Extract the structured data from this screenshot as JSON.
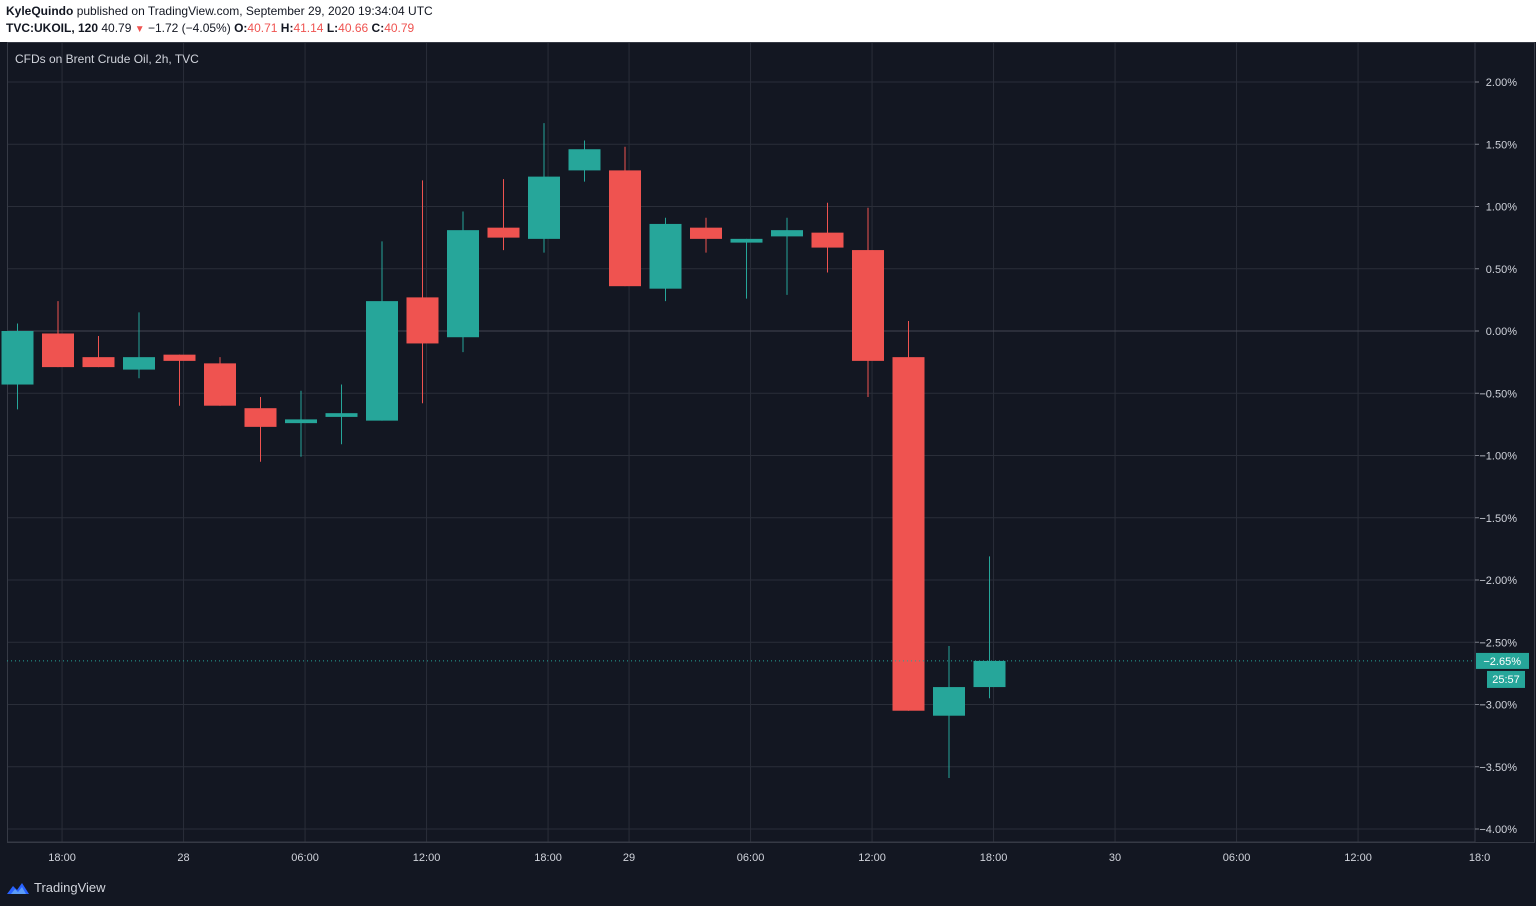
{
  "header": {
    "author": "KyleQuindo",
    "published_text": "published on TradingView.com, September 29, 2020 19:34:04 UTC",
    "symbol": "TVC:UKOIL, 120",
    "last": "40.79",
    "change": "−1.72 (−4.05%)",
    "o_label": "O:",
    "o": "40.71",
    "h_label": "H:",
    "h": "41.14",
    "l_label": "L:",
    "l": "40.66",
    "c_label": "C:",
    "c": "40.79"
  },
  "footer": {
    "brand": "TradingView"
  },
  "chart_data": {
    "type": "candlestick",
    "title": "CFDs on Brent Crude Oil, 2h, TVC",
    "y_unit": "%",
    "ylim": [
      -4.0,
      2.0
    ],
    "y_ticks": [
      {
        "v": 2.0,
        "label": "2.00%"
      },
      {
        "v": 1.5,
        "label": "1.50%"
      },
      {
        "v": 1.0,
        "label": "1.00%"
      },
      {
        "v": 0.5,
        "label": "0.50%"
      },
      {
        "v": 0.0,
        "label": "0.00%"
      },
      {
        "v": -0.5,
        "label": "−0.50%"
      },
      {
        "v": -1.0,
        "label": "−1.00%"
      },
      {
        "v": -1.5,
        "label": "−1.50%"
      },
      {
        "v": -2.0,
        "label": "−2.00%"
      },
      {
        "v": -2.5,
        "label": "−2.50%"
      },
      {
        "v": -3.0,
        "label": "−3.00%"
      },
      {
        "v": -3.5,
        "label": "−3.50%"
      },
      {
        "v": -4.0,
        "label": "−4.00%"
      }
    ],
    "x_ticks": [
      {
        "i": 1.1,
        "label": "18:00"
      },
      {
        "i": 4.1,
        "label": "28"
      },
      {
        "i": 7.1,
        "label": "06:00"
      },
      {
        "i": 10.1,
        "label": "12:00"
      },
      {
        "i": 13.1,
        "label": "18:00"
      },
      {
        "i": 15.1,
        "label": "29"
      },
      {
        "i": 18.1,
        "label": "06:00"
      },
      {
        "i": 21.1,
        "label": "12:00"
      },
      {
        "i": 24.1,
        "label": "18:00"
      },
      {
        "i": 27.1,
        "label": "30"
      },
      {
        "i": 30.1,
        "label": "06:00"
      },
      {
        "i": 33.1,
        "label": "12:00"
      },
      {
        "i": 36.1,
        "label": "18:0"
      }
    ],
    "candles": [
      {
        "o": -0.43,
        "h": 0.06,
        "l": -0.63,
        "c": 0.0
      },
      {
        "o": -0.02,
        "h": 0.24,
        "l": -0.29,
        "c": -0.29
      },
      {
        "o": -0.21,
        "h": -0.04,
        "l": -0.29,
        "c": -0.29
      },
      {
        "o": -0.31,
        "h": 0.15,
        "l": -0.38,
        "c": -0.21
      },
      {
        "o": -0.19,
        "h": -0.19,
        "l": -0.6,
        "c": -0.24
      },
      {
        "o": -0.26,
        "h": -0.21,
        "l": -0.6,
        "c": -0.6
      },
      {
        "o": -0.62,
        "h": -0.53,
        "l": -1.05,
        "c": -0.77
      },
      {
        "o": -0.74,
        "h": -0.48,
        "l": -1.01,
        "c": -0.71
      },
      {
        "o": -0.69,
        "h": -0.43,
        "l": -0.91,
        "c": -0.66
      },
      {
        "o": -0.72,
        "h": 0.72,
        "l": -0.72,
        "c": 0.24
      },
      {
        "o": 0.27,
        "h": 1.21,
        "l": -0.58,
        "c": -0.1
      },
      {
        "o": -0.05,
        "h": 0.96,
        "l": -0.17,
        "c": 0.81
      },
      {
        "o": 0.83,
        "h": 1.22,
        "l": 0.65,
        "c": 0.75
      },
      {
        "o": 0.74,
        "h": 1.67,
        "l": 0.63,
        "c": 1.24
      },
      {
        "o": 1.29,
        "h": 1.53,
        "l": 1.2,
        "c": 1.46
      },
      {
        "o": 1.29,
        "h": 1.48,
        "l": 0.36,
        "c": 0.36
      },
      {
        "o": 0.34,
        "h": 0.91,
        "l": 0.24,
        "c": 0.86
      },
      {
        "o": 0.83,
        "h": 0.91,
        "l": 0.63,
        "c": 0.74
      },
      {
        "o": 0.71,
        "h": 0.74,
        "l": 0.26,
        "c": 0.74
      },
      {
        "o": 0.76,
        "h": 0.91,
        "l": 0.29,
        "c": 0.81
      },
      {
        "o": 0.79,
        "h": 1.03,
        "l": 0.47,
        "c": 0.67
      },
      {
        "o": 0.65,
        "h": 0.99,
        "l": -0.53,
        "c": -0.24
      },
      {
        "o": -0.21,
        "h": 0.08,
        "l": -3.05,
        "c": -3.05
      },
      {
        "o": -3.09,
        "h": -2.53,
        "l": -3.59,
        "c": -2.86
      },
      {
        "o": -2.86,
        "h": -1.81,
        "l": -2.95,
        "c": -2.65
      }
    ],
    "last_value": -2.65,
    "last_label": "−2.65%",
    "countdown": "25:57",
    "grid": true,
    "colors": {
      "up": "#26a69a",
      "down": "#ef5350",
      "background": "#131722",
      "grid": "#2a2e39",
      "axis_text": "#d1d4dc"
    }
  }
}
